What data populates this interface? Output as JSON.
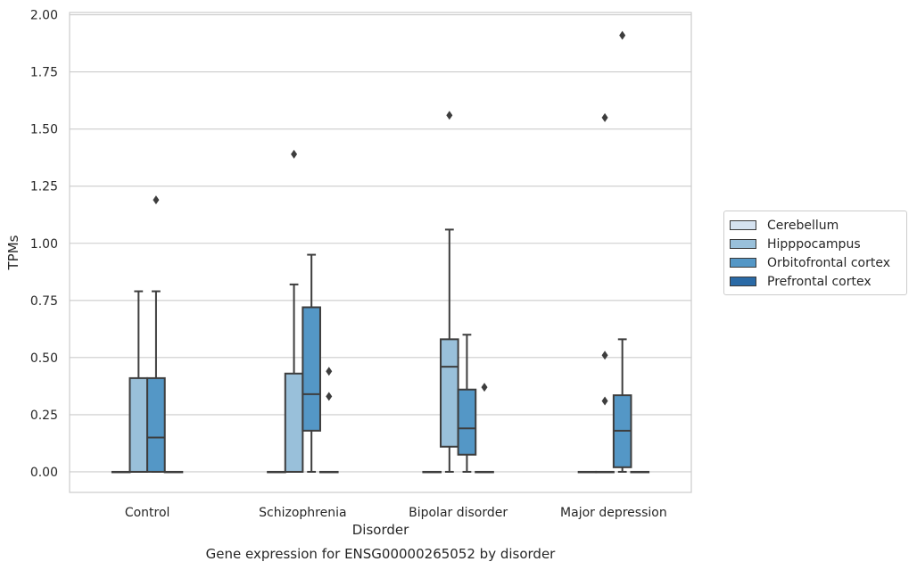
{
  "chart_data": {
    "type": "box",
    "title": "",
    "caption": "Gene expression for ENSG00000265052 by disorder",
    "xlabel": "Disorder",
    "ylabel": "TPMs",
    "ylim": [
      -0.09,
      2.01
    ],
    "yticks": [
      "0.00",
      "0.25",
      "0.50",
      "0.75",
      "1.00",
      "1.25",
      "1.50",
      "1.75",
      "2.00"
    ],
    "ytick_values": [
      0,
      0.25,
      0.5,
      0.75,
      1.0,
      1.25,
      1.5,
      1.75,
      2.0
    ],
    "grid": true,
    "legend_position": "right",
    "categories": [
      "Control",
      "Schizophrenia",
      "Bipolar disorder",
      "Major depression"
    ],
    "series": [
      {
        "name": "Cerebellum",
        "color": "#d5e2f0",
        "boxes": [
          {
            "q1": 0,
            "median": 0,
            "q3": 0,
            "whisker_low": 0,
            "whisker_high": 0,
            "outliers": []
          },
          {
            "q1": 0,
            "median": 0,
            "q3": 0,
            "whisker_low": 0,
            "whisker_high": 0,
            "outliers": []
          },
          {
            "q1": 0,
            "median": 0,
            "q3": 0,
            "whisker_low": 0,
            "whisker_high": 0,
            "outliers": []
          },
          {
            "q1": 0,
            "median": 0,
            "q3": 0,
            "whisker_low": 0,
            "whisker_high": 0,
            "outliers": []
          }
        ]
      },
      {
        "name": "Hipppocampus",
        "color": "#99c0da",
        "boxes": [
          {
            "q1": 0,
            "median": 0,
            "q3": 0.41,
            "whisker_low": 0,
            "whisker_high": 0.79,
            "outliers": []
          },
          {
            "q1": 0,
            "median": 0,
            "q3": 0.43,
            "whisker_low": 0,
            "whisker_high": 0.82,
            "outliers": [
              1.39
            ]
          },
          {
            "q1": 0.11,
            "median": 0.46,
            "q3": 0.58,
            "whisker_low": 0,
            "whisker_high": 1.06,
            "outliers": [
              1.56
            ]
          },
          {
            "q1": 0,
            "median": 0,
            "q3": 0,
            "whisker_low": 0,
            "whisker_high": 0,
            "outliers": [
              0.31,
              0.51,
              1.55
            ]
          }
        ]
      },
      {
        "name": "Orbitofrontal cortex",
        "color": "#5497c6",
        "boxes": [
          {
            "q1": 0,
            "median": 0.15,
            "q3": 0.41,
            "whisker_low": 0,
            "whisker_high": 0.79,
            "outliers": [
              1.19
            ]
          },
          {
            "q1": 0.18,
            "median": 0.34,
            "q3": 0.72,
            "whisker_low": 0,
            "whisker_high": 0.95,
            "outliers": []
          },
          {
            "q1": 0.075,
            "median": 0.19,
            "q3": 0.36,
            "whisker_low": 0,
            "whisker_high": 0.6,
            "outliers": []
          },
          {
            "q1": 0.02,
            "median": 0.18,
            "q3": 0.335,
            "whisker_low": 0,
            "whisker_high": 0.58,
            "outliers": [
              1.91
            ]
          }
        ]
      },
      {
        "name": "Prefrontal cortex",
        "color": "#2a6aa6",
        "boxes": [
          {
            "q1": 0,
            "median": 0,
            "q3": 0,
            "whisker_low": 0,
            "whisker_high": 0,
            "outliers": []
          },
          {
            "q1": 0,
            "median": 0,
            "q3": 0,
            "whisker_low": 0,
            "whisker_high": 0,
            "outliers": [
              0.33,
              0.44
            ]
          },
          {
            "q1": 0,
            "median": 0,
            "q3": 0,
            "whisker_low": 0,
            "whisker_high": 0,
            "outliers": [
              0.37
            ]
          },
          {
            "q1": 0,
            "median": 0,
            "q3": 0,
            "whisker_low": 0,
            "whisker_high": 0,
            "outliers": []
          }
        ]
      }
    ]
  }
}
